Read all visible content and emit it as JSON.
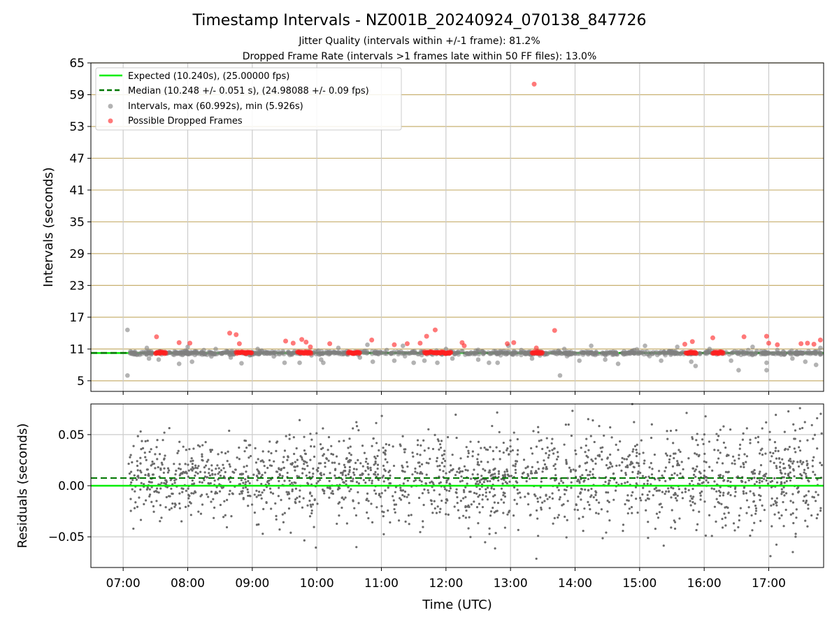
{
  "title": "Timestamp Intervals - NZ001B_20240924_070138_847726",
  "subtitle1": "Jitter Quality (intervals within +/-1 frame): 81.2%",
  "subtitle2": "Dropped Frame Rate (intervals >1 frames late within 50 FF files): 13.0%",
  "colors": {
    "expected": "#00ee00",
    "median": "#007700",
    "intervals": "#808080",
    "dropped": "#ff2020",
    "hgrid_top": "#c8b070",
    "grid": "#cccccc"
  },
  "chart_data": [
    {
      "type": "scatter",
      "title": "Timestamp Intervals - NZ001B_20240924_070138_847726",
      "xlabel": "",
      "ylabel": "Intervals (seconds)",
      "ylim": [
        3,
        65
      ],
      "yticks": [
        5,
        11,
        17,
        23,
        29,
        35,
        41,
        47,
        53,
        59,
        65
      ],
      "xlim": [
        "06:30",
        "17:51"
      ],
      "xticks": [
        "07:00",
        "08:00",
        "09:00",
        "10:00",
        "11:00",
        "12:00",
        "13:00",
        "14:00",
        "15:00",
        "16:00",
        "17:00"
      ],
      "grid": true,
      "legend_position": "top-left",
      "legend": [
        "Expected (10.240s), (25.00000 fps)",
        "Median (10.248 +/- 0.051 s), (24.98088 +/- 0.09 fps)",
        "Intervals, max (60.992s), min (5.926s)",
        "Possible Dropped Frames"
      ],
      "expected": 10.24,
      "median": 10.248,
      "series": [
        {
          "name": "Intervals, max (60.992s), min (5.926s)",
          "points": [
            [
              "07:04",
              14.6
            ],
            [
              "07:04",
              6.0
            ],
            [
              "07:22",
              11.2
            ],
            [
              "07:24",
              9.2
            ],
            [
              "07:33",
              9.0
            ],
            [
              "07:52",
              8.2
            ],
            [
              "08:00",
              11.4
            ],
            [
              "08:04",
              8.6
            ],
            [
              "08:15",
              10.8
            ],
            [
              "08:22",
              9.6
            ],
            [
              "08:26",
              11.0
            ],
            [
              "08:40",
              9.4
            ],
            [
              "08:50",
              8.3
            ],
            [
              "09:05",
              11.0
            ],
            [
              "09:20",
              9.6
            ],
            [
              "09:30",
              8.4
            ],
            [
              "09:44",
              8.4
            ],
            [
              "09:55",
              9.8
            ],
            [
              "10:04",
              9.0
            ],
            [
              "10:06",
              8.4
            ],
            [
              "10:20",
              11.2
            ],
            [
              "10:40",
              9.4
            ],
            [
              "10:47",
              11.8
            ],
            [
              "10:52",
              8.6
            ],
            [
              "11:05",
              10.8
            ],
            [
              "11:12",
              8.8
            ],
            [
              "11:20",
              11.6
            ],
            [
              "11:30",
              8.4
            ],
            [
              "11:40",
              8.8
            ],
            [
              "11:52",
              8.4
            ],
            [
              "12:00",
              11.0
            ],
            [
              "12:06",
              9.2
            ],
            [
              "12:30",
              9.0
            ],
            [
              "12:40",
              8.4
            ],
            [
              "12:48",
              8.4
            ],
            [
              "12:58",
              11.6
            ],
            [
              "13:10",
              10.8
            ],
            [
              "13:20",
              9.2
            ],
            [
              "13:46",
              6.0
            ],
            [
              "13:50",
              11.0
            ],
            [
              "14:04",
              8.8
            ],
            [
              "14:15",
              11.6
            ],
            [
              "14:28",
              9.0
            ],
            [
              "14:40",
              8.2
            ],
            [
              "14:55",
              10.8
            ],
            [
              "15:05",
              11.6
            ],
            [
              "15:20",
              8.8
            ],
            [
              "15:35",
              11.4
            ],
            [
              "15:48",
              8.6
            ],
            [
              "15:52",
              7.8
            ],
            [
              "16:05",
              11.0
            ],
            [
              "16:25",
              8.8
            ],
            [
              "16:32",
              7.0
            ],
            [
              "16:45",
              11.4
            ],
            [
              "16:58",
              8.4
            ],
            [
              "16:58",
              7.0
            ],
            [
              "17:08",
              10.8
            ],
            [
              "17:22",
              9.2
            ],
            [
              "17:34",
              8.6
            ],
            [
              "17:44",
              8.0
            ],
            [
              "17:48",
              11.2
            ]
          ]
        },
        {
          "name": "Possible Dropped Frames",
          "points": [
            [
              "07:31",
              13.3
            ],
            [
              "07:52",
              12.2
            ],
            [
              "08:02",
              12.1
            ],
            [
              "08:39",
              14.0
            ],
            [
              "08:45",
              13.7
            ],
            [
              "08:48",
              12.0
            ],
            [
              "09:31",
              12.5
            ],
            [
              "09:38",
              12.1
            ],
            [
              "09:46",
              12.8
            ],
            [
              "09:50",
              12.3
            ],
            [
              "09:54",
              11.4
            ],
            [
              "10:12",
              12.0
            ],
            [
              "10:51",
              12.7
            ],
            [
              "11:12",
              11.8
            ],
            [
              "11:24",
              12.0
            ],
            [
              "11:36",
              12.1
            ],
            [
              "11:42",
              13.4
            ],
            [
              "11:50",
              14.6
            ],
            [
              "12:15",
              12.2
            ],
            [
              "12:17",
              11.6
            ],
            [
              "12:57",
              12.0
            ],
            [
              "13:03",
              12.2
            ],
            [
              "13:22",
              60.99
            ],
            [
              "13:24",
              11.2
            ],
            [
              "13:41",
              14.5
            ],
            [
              "15:42",
              11.9
            ],
            [
              "15:49",
              12.4
            ],
            [
              "16:08",
              13.1
            ],
            [
              "16:37",
              13.3
            ],
            [
              "16:58",
              13.4
            ],
            [
              "17:00",
              12.1
            ],
            [
              "17:08",
              11.8
            ],
            [
              "17:30",
              12.0
            ],
            [
              "17:36",
              12.1
            ],
            [
              "17:42",
              11.9
            ],
            [
              "17:48",
              12.7
            ]
          ],
          "clusters": [
            [
              "07:30",
              "07:40"
            ],
            [
              "08:45",
              "09:00"
            ],
            [
              "09:42",
              "09:55"
            ],
            [
              "10:29",
              "10:40"
            ],
            [
              "11:40",
              "12:05"
            ],
            [
              "13:20",
              "13:30"
            ],
            [
              "15:43",
              "15:53"
            ],
            [
              "16:08",
              "16:18"
            ]
          ],
          "cluster_value": 10.3
        }
      ]
    },
    {
      "type": "scatter",
      "xlabel": "Time (UTC)",
      "ylabel": "Residuals (seconds)",
      "ylim": [
        -0.08,
        0.08
      ],
      "yticks": [
        "0.05",
        "0.00",
        "−0.05"
      ],
      "ytick_values": [
        0.05,
        0.0,
        -0.05
      ],
      "xlim": [
        "06:30",
        "17:51"
      ],
      "xticks": [
        "07:00",
        "08:00",
        "09:00",
        "10:00",
        "11:00",
        "12:00",
        "13:00",
        "14:00",
        "15:00",
        "16:00",
        "17:00"
      ],
      "grid": true,
      "expected_residual": 0.0,
      "median_residual": 0.0075,
      "residual_spread": 0.022,
      "n_points": 2000
    }
  ]
}
